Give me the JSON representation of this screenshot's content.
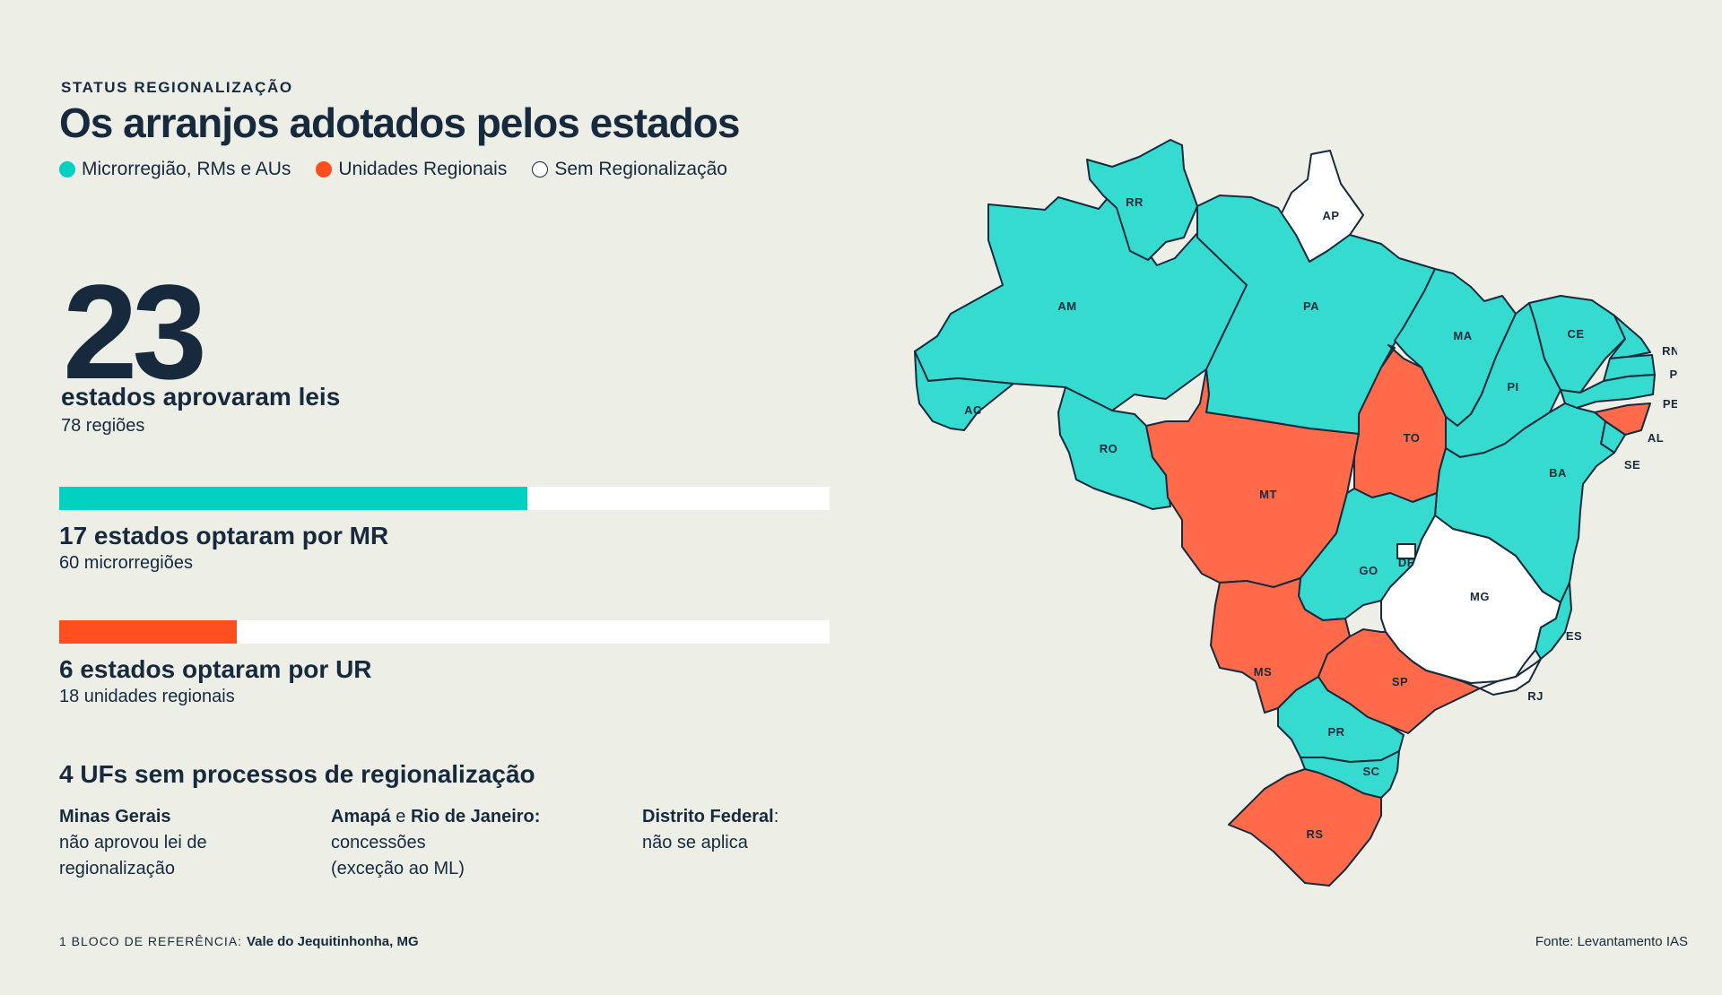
{
  "header": {
    "kicker": "STATUS REGIONALIZAÇÃO",
    "title": "Os arranjos adotados pelos estados"
  },
  "legend": [
    {
      "label": "Microrregião, RMs e AUs",
      "color": "#36dbd0"
    },
    {
      "label": "Unidades Regionais",
      "color": "#ff5a2a"
    },
    {
      "label": "Sem Regionalização",
      "color": "#ffffff"
    }
  ],
  "summary": {
    "number": "23",
    "label": "estados aprovaram leis",
    "sub": "78 regiões"
  },
  "bars": [
    {
      "label": "17 estados optaram por MR",
      "sub": "60 microrregiões",
      "value": 17,
      "total": 28,
      "color": "#00d1c1"
    },
    {
      "label": "6 estados optaram por UR",
      "sub": "18 unidades regionais",
      "value": 6,
      "total": 26,
      "color": "#ff4f1f"
    }
  ],
  "no_region": {
    "title": "4 UFs sem processos de regionalização",
    "mg_name": "Minas Gerais",
    "mg_text1": "não aprovou lei de",
    "mg_text2": "regionalização",
    "ap_name": "Amapá",
    "conj": " e ",
    "rj_name": "Rio de Janeiro:",
    "ap_text1": "concessões",
    "ap_text2": "(exceção ao ML)",
    "df_name": "Distrito Federal",
    "df_colon": ":",
    "df_text": "não se aplica"
  },
  "footer": {
    "footnote_prefix": "1 BLOCO DE REFERÊNCIA:",
    "footnote_value": "Vale do Jequitinhonha, MG",
    "source": "Fonte: Levantamento IAS"
  },
  "map": {
    "colors": {
      "mr": "#36dbd0",
      "ur": "#ff6b4a",
      "none": "#ffffff"
    },
    "labels": {
      "RR": "RR",
      "AP": "AP",
      "AM": "AM",
      "PA": "PA",
      "MA": "MA",
      "CE": "CE",
      "RN": "RN",
      "PB": "PB",
      "PE": "PE",
      "PI": "PI",
      "AL": "AL",
      "SE": "SE",
      "AC": "AC",
      "RO": "RO",
      "TO": "TO",
      "BA": "BA",
      "MT": "MT",
      "GO": "GO",
      "DF": "DF",
      "MG": "MG",
      "ES": "ES",
      "MS": "MS",
      "SP": "SP",
      "RJ": "RJ",
      "PR": "PR",
      "SC": "SC",
      "RS": "RS"
    }
  }
}
